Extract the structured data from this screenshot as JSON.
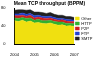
{
  "chart_data": {
    "type": "area",
    "title": "Mean TCP throughput (BPPM)",
    "stacked": true,
    "grid": false,
    "legend": "right",
    "categories": [
      "2004",
      null,
      null,
      null,
      null,
      "2005",
      null,
      null,
      null,
      null,
      "2006",
      null,
      null,
      null,
      null,
      "2007"
    ],
    "series": [
      {
        "name": "Other",
        "color": "#f0e010",
        "values": [
          52,
          50,
          53,
          49,
          51,
          47,
          48,
          46,
          45,
          47,
          44,
          42,
          43,
          40,
          41,
          39
        ]
      },
      {
        "name": "HTTP",
        "color": "#30b030",
        "values": [
          6,
          7,
          6,
          8,
          7,
          6,
          7,
          6,
          7,
          6,
          6,
          7,
          6,
          6,
          5,
          6
        ]
      },
      {
        "name": "P2P",
        "color": "#d02020",
        "values": [
          5,
          6,
          5,
          5,
          6,
          5,
          5,
          6,
          5,
          5,
          5,
          4,
          5,
          5,
          4,
          5
        ]
      },
      {
        "name": "FTP",
        "color": "#2040d0",
        "values": [
          4,
          4,
          5,
          4,
          4,
          5,
          4,
          4,
          4,
          4,
          4,
          4,
          3,
          4,
          4,
          3
        ]
      },
      {
        "name": "SMTP",
        "color": "#202020",
        "values": [
          8,
          9,
          7,
          9,
          8,
          8,
          7,
          8,
          7,
          8,
          7,
          7,
          7,
          6,
          7,
          6
        ]
      }
    ],
    "ylim": [
      0,
      80
    ],
    "yticks": [
      0,
      40,
      80
    ]
  }
}
